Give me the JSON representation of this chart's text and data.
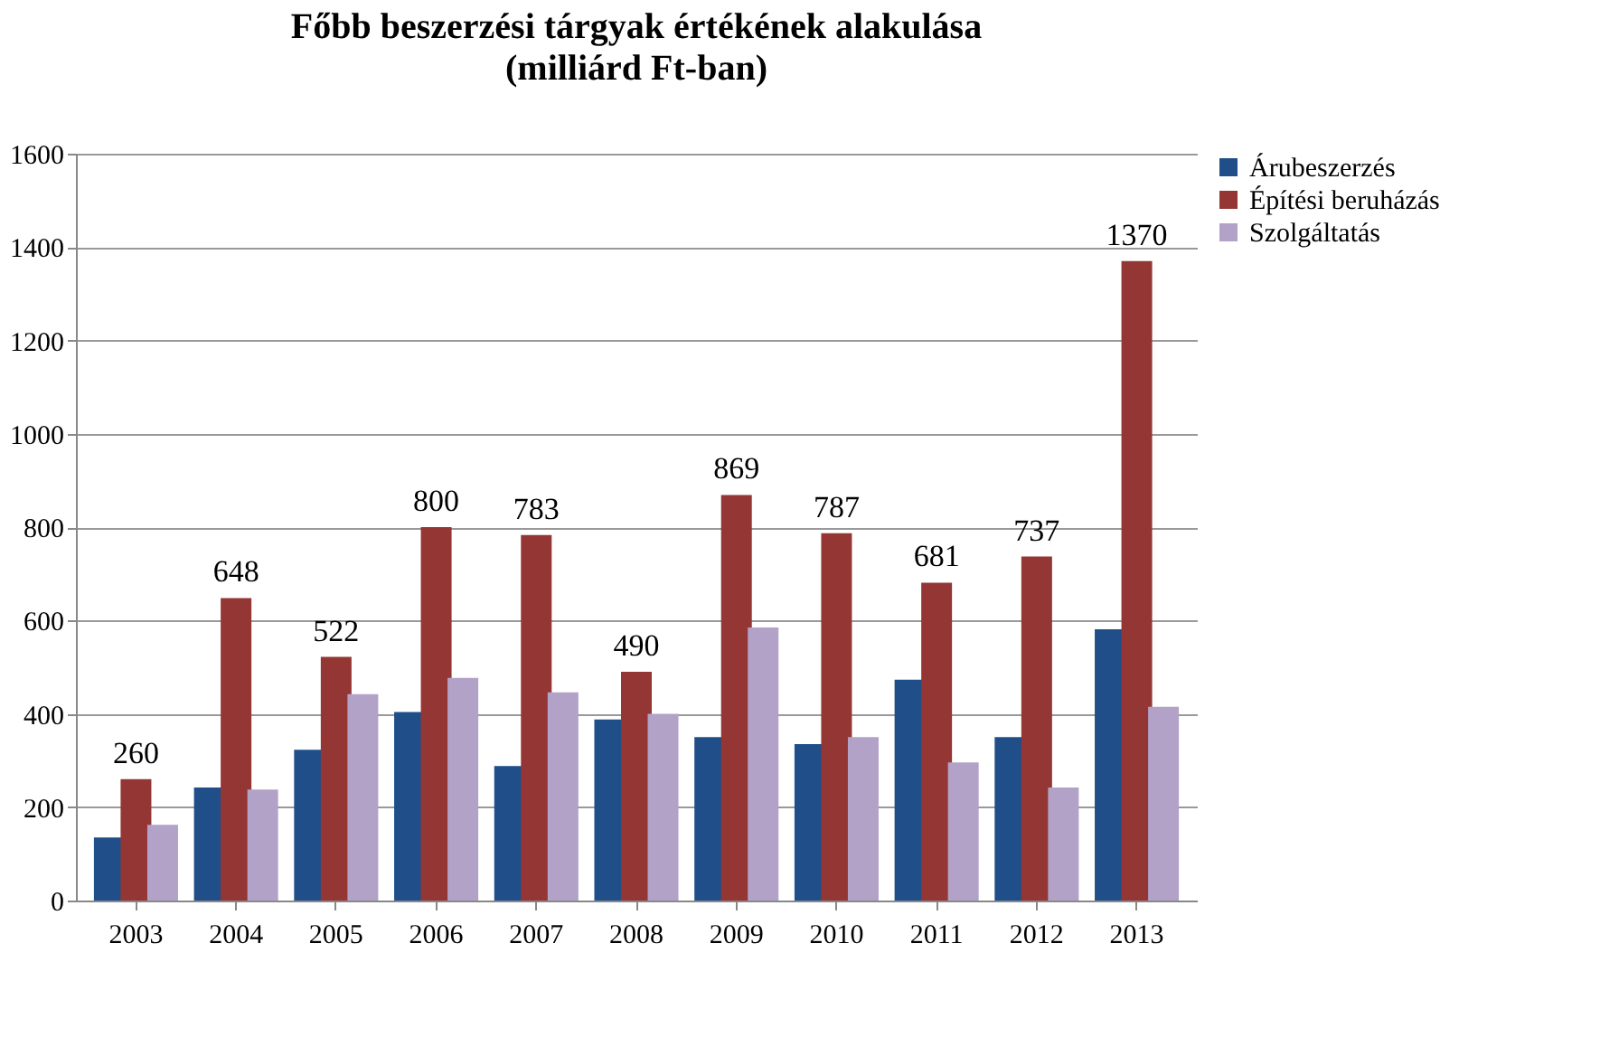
{
  "chart_data": {
    "type": "bar",
    "title": "Főbb beszerzési tárgyak értékének alakulása",
    "subtitle": "(milliárd Ft-ban)",
    "categories": [
      "2003",
      "2004",
      "2005",
      "2006",
      "2007",
      "2008",
      "2009",
      "2010",
      "2011",
      "2012",
      "2013"
    ],
    "series": [
      {
        "name": "Árubeszerzés",
        "color": "#1f4e89",
        "values": [
          135,
          242,
          323,
          404,
          288,
          388,
          350,
          335,
          473,
          350,
          581
        ]
      },
      {
        "name": "Építési beruházás",
        "color": "#943634",
        "values": [
          260,
          648,
          522,
          800,
          783,
          490,
          869,
          787,
          681,
          737,
          1370
        ],
        "value_labels": [
          "260",
          "648",
          "522",
          "800",
          "783",
          "490",
          "869",
          "787",
          "681",
          "737",
          "1370"
        ]
      },
      {
        "name": "Szolgáltatás",
        "color": "#b2a2c7",
        "values": [
          162,
          238,
          442,
          477,
          446,
          400,
          585,
          350,
          296,
          242,
          415
        ]
      }
    ],
    "ylim": [
      0,
      1600
    ],
    "yticks": [
      0,
      200,
      400,
      600,
      800,
      1000,
      1200,
      1400,
      1600
    ],
    "grid": "y",
    "legend": "right"
  }
}
